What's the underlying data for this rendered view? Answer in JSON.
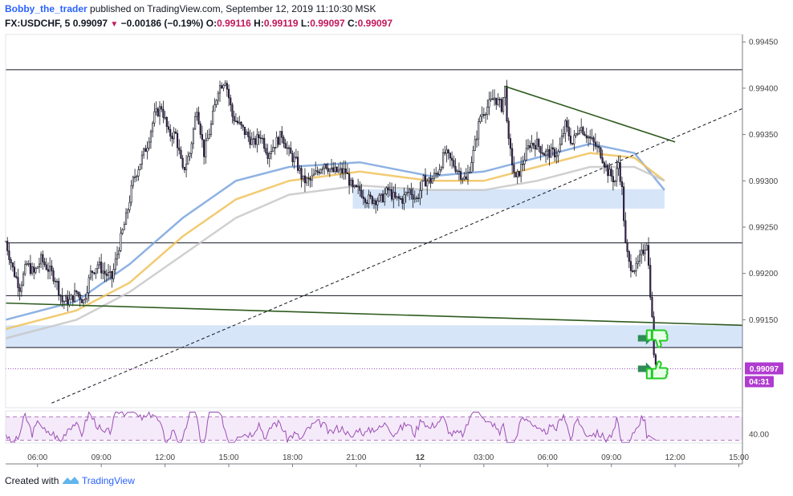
{
  "header": {
    "author": "Bobby_the_trader",
    "published": " published on TradingView.com, September 12, 2019 11:10:30 MSK",
    "symbol": "FX:USDCHF, 5",
    "last": "0.99097",
    "change": "−0.00186 (−0.19%)",
    "o_label": "O:",
    "o": "0.99116",
    "h_label": "H:",
    "h": "0.99119",
    "l_label": "L:",
    "l": "0.99097",
    "c_label": "C:",
    "c": "0.99097"
  },
  "footer": {
    "prefix": "Created with",
    "brand": "TradingView"
  },
  "price_tag": {
    "price": "0.99097",
    "countdown": "04:31"
  },
  "rsi_label": "40.00",
  "colors": {
    "candle_up": "#ffffff",
    "candle_down": "#4a1f5e",
    "wick": "#131722",
    "support_zone": "#cfe0f7",
    "trend": "#2e5b1e",
    "ma_blue": "#7aa5de",
    "ma_orange": "#f0c25a",
    "ma_gray": "#c8c8c8",
    "rsi": "#9b4fb5",
    "arrow": "#2e8b57",
    "thumb": "#22cc22"
  },
  "chart_data": {
    "type": "candlestick",
    "symbol": "FX:USDCHF",
    "timeframe": "5",
    "ylim": [
      0.99055,
      0.99458
    ],
    "y_ticks": [
      "0.99450",
      "0.99400",
      "0.99350",
      "0.99300",
      "0.99250",
      "0.99200",
      "0.99150"
    ],
    "x_ticks": [
      {
        "label": "06:00",
        "i": 18
      },
      {
        "label": "09:00",
        "i": 54
      },
      {
        "label": "12:00",
        "i": 90
      },
      {
        "label": "15:00",
        "i": 126
      },
      {
        "label": "18:00",
        "i": 162
      },
      {
        "label": "21:00",
        "i": 198
      },
      {
        "label": "12",
        "i": 234
      },
      {
        "label": "03:00",
        "i": 270
      },
      {
        "label": "06:00",
        "i": 306
      },
      {
        "label": "09:00",
        "i": 342
      },
      {
        "label": "12:00",
        "i": 378
      },
      {
        "label": "15:00",
        "i": 414
      }
    ],
    "x_range": [
      0,
      416
    ],
    "anchors": [
      [
        0,
        0.99235
      ],
      [
        4,
        0.99205
      ],
      [
        8,
        0.99185
      ],
      [
        12,
        0.9921
      ],
      [
        16,
        0.992
      ],
      [
        20,
        0.99215
      ],
      [
        24,
        0.99205
      ],
      [
        28,
        0.99195
      ],
      [
        32,
        0.9917
      ],
      [
        36,
        0.9917
      ],
      [
        40,
        0.9918
      ],
      [
        44,
        0.9917
      ],
      [
        48,
        0.992
      ],
      [
        52,
        0.9921
      ],
      [
        56,
        0.992
      ],
      [
        60,
        0.99195
      ],
      [
        64,
        0.9923
      ],
      [
        68,
        0.9926
      ],
      [
        72,
        0.993
      ],
      [
        76,
        0.9932
      ],
      [
        80,
        0.9934
      ],
      [
        84,
        0.9937
      ],
      [
        88,
        0.9938
      ],
      [
        92,
        0.9935
      ],
      [
        96,
        0.9935
      ],
      [
        100,
        0.9931
      ],
      [
        104,
        0.9933
      ],
      [
        108,
        0.9938
      ],
      [
        112,
        0.9933
      ],
      [
        116,
        0.9936
      ],
      [
        120,
        0.994
      ],
      [
        124,
        0.9941
      ],
      [
        128,
        0.9937
      ],
      [
        132,
        0.9936
      ],
      [
        136,
        0.9935
      ],
      [
        140,
        0.9934
      ],
      [
        144,
        0.9935
      ],
      [
        148,
        0.9933
      ],
      [
        152,
        0.9934
      ],
      [
        156,
        0.9935
      ],
      [
        160,
        0.9933
      ],
      [
        164,
        0.9932
      ],
      [
        168,
        0.993
      ],
      [
        172,
        0.993
      ],
      [
        176,
        0.9931
      ],
      [
        180,
        0.9932
      ],
      [
        184,
        0.9931
      ],
      [
        188,
        0.9931
      ],
      [
        192,
        0.9931
      ],
      [
        196,
        0.9929
      ],
      [
        200,
        0.9929
      ],
      [
        204,
        0.9928
      ],
      [
        208,
        0.9928
      ],
      [
        212,
        0.9928
      ],
      [
        216,
        0.9929
      ],
      [
        220,
        0.9928
      ],
      [
        224,
        0.9928
      ],
      [
        228,
        0.9929
      ],
      [
        232,
        0.9928
      ],
      [
        236,
        0.993
      ],
      [
        240,
        0.993
      ],
      [
        244,
        0.9931
      ],
      [
        248,
        0.9933
      ],
      [
        252,
        0.9932
      ],
      [
        256,
        0.9931
      ],
      [
        260,
        0.993
      ],
      [
        264,
        0.9933
      ],
      [
        268,
        0.9937
      ],
      [
        272,
        0.9938
      ],
      [
        276,
        0.9939
      ],
      [
        280,
        0.9938
      ],
      [
        282,
        0.994
      ],
      [
        284,
        0.9934
      ],
      [
        288,
        0.993
      ],
      [
        292,
        0.9932
      ],
      [
        296,
        0.9934
      ],
      [
        300,
        0.9934
      ],
      [
        304,
        0.9933
      ],
      [
        308,
        0.9933
      ],
      [
        312,
        0.9933
      ],
      [
        316,
        0.9936
      ],
      [
        320,
        0.9934
      ],
      [
        324,
        0.9936
      ],
      [
        328,
        0.9935
      ],
      [
        332,
        0.9934
      ],
      [
        336,
        0.9933
      ],
      [
        340,
        0.9931
      ],
      [
        344,
        0.993
      ],
      [
        346,
        0.9932
      ],
      [
        348,
        0.9929
      ],
      [
        350,
        0.9923
      ],
      [
        352,
        0.9921
      ],
      [
        356,
        0.99205
      ],
      [
        360,
        0.99225
      ],
      [
        362,
        0.99235
      ],
      [
        364,
        0.9918
      ],
      [
        365,
        0.9915
      ],
      [
        366,
        0.99115
      ],
      [
        367,
        0.99097
      ]
    ],
    "moving_averages": [
      {
        "color": "blue",
        "points": [
          [
            0,
            0.9915
          ],
          [
            40,
            0.9917
          ],
          [
            70,
            0.9921
          ],
          [
            100,
            0.9926
          ],
          [
            130,
            0.993
          ],
          [
            160,
            0.99315
          ],
          [
            200,
            0.9932
          ],
          [
            240,
            0.99305
          ],
          [
            270,
            0.9931
          ],
          [
            300,
            0.99325
          ],
          [
            330,
            0.9934
          ],
          [
            355,
            0.9933
          ],
          [
            372,
            0.9929
          ]
        ]
      },
      {
        "color": "orange",
        "points": [
          [
            0,
            0.9914
          ],
          [
            40,
            0.9916
          ],
          [
            70,
            0.9919
          ],
          [
            100,
            0.9924
          ],
          [
            130,
            0.9928
          ],
          [
            160,
            0.993
          ],
          [
            200,
            0.9931
          ],
          [
            240,
            0.993
          ],
          [
            270,
            0.993
          ],
          [
            300,
            0.99315
          ],
          [
            330,
            0.9933
          ],
          [
            355,
            0.99325
          ],
          [
            372,
            0.993
          ]
        ]
      },
      {
        "color": "gray",
        "points": [
          [
            0,
            0.9913
          ],
          [
            40,
            0.9915
          ],
          [
            70,
            0.9918
          ],
          [
            100,
            0.9922
          ],
          [
            130,
            0.9926
          ],
          [
            160,
            0.99285
          ],
          [
            200,
            0.99295
          ],
          [
            240,
            0.9929
          ],
          [
            270,
            0.9929
          ],
          [
            300,
            0.993
          ],
          [
            330,
            0.99315
          ],
          [
            355,
            0.99315
          ],
          [
            372,
            0.993
          ]
        ]
      }
    ],
    "horizontal_lines": [
      0.9942,
      0.99233,
      0.99176,
      0.9912
    ],
    "zones": [
      {
        "x0": 196,
        "x1": 372,
        "y_top": 0.99291,
        "y_bottom": 0.9927
      },
      {
        "x0": 0,
        "x1": 416,
        "y_top": 0.99144,
        "y_bottom": 0.9912
      }
    ],
    "trendlines": [
      {
        "style": "solid",
        "x0": 282,
        "y0": 0.99402,
        "x1": 378,
        "y1": 0.99342
      },
      {
        "style": "solid",
        "x0": 0,
        "y0": 0.99168,
        "x1": 416,
        "y1": 0.99144
      },
      {
        "style": "dashed",
        "x0": 26,
        "y0": 0.9906,
        "x1": 416,
        "y1": 0.99378
      }
    ],
    "current_price": 0.99097,
    "rsi": {
      "level": 40.0
    }
  }
}
